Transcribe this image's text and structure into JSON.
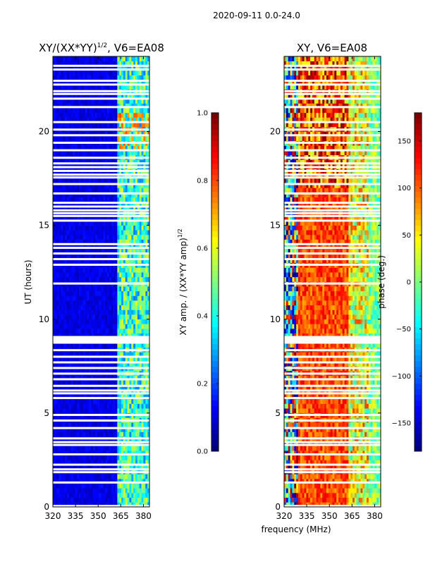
{
  "figure_title": "2020-09-11 0.0-24.0",
  "colors": {
    "jet_stops": [
      "#00007f",
      "#0000ff",
      "#007fff",
      "#00ffff",
      "#7fff7f",
      "#ffff00",
      "#ff7f00",
      "#ff0000",
      "#7f0000"
    ],
    "flagged_row": "#ffffff",
    "axis": "#000000"
  },
  "chart_data": [
    {
      "type": "heatmap",
      "title_main": "XY/(XX*YY)",
      "title_exp": "1/2",
      "title_suffix": ", V6=EA08",
      "xlabel": "",
      "ylabel": "UT (hours)",
      "xlim": [
        320,
        384
      ],
      "ylim": [
        0,
        24
      ],
      "xticks": [
        320,
        335,
        350,
        365,
        380
      ],
      "yticks": [
        0,
        5,
        10,
        15,
        20
      ],
      "colorbar": {
        "label_main": "XY amp. / (XX*YY amp)",
        "label_exp": "1/2",
        "range": [
          0.0,
          1.0
        ],
        "ticks": [
          "0.0",
          "0.2",
          "0.4",
          "0.6",
          "0.8",
          "1.0"
        ]
      },
      "flagged_times_hours": [
        0.05,
        1.3,
        1.85,
        2.0,
        2.25,
        2.8,
        3.3,
        3.45,
        3.65,
        4.2,
        4.6,
        4.9,
        5.8,
        6.05,
        6.2,
        6.45,
        6.8,
        7.1,
        7.4,
        7.7,
        8.0,
        8.35,
        8.75,
        8.85,
        8.95,
        9.05,
        11.9,
        12.9,
        13.2,
        13.5,
        13.8,
        14.0,
        15.25,
        15.5,
        15.65,
        15.8,
        16.0,
        16.2,
        16.7,
        17.2,
        17.55,
        17.7,
        17.9,
        18.1,
        18.3,
        18.6,
        19.0,
        19.4,
        19.8,
        20.1,
        20.5,
        21.3,
        21.75,
        22.0,
        22.15,
        22.5,
        22.7,
        23.3,
        23.5
      ],
      "bands": [
        {
          "x_range_mhz": [
            320,
            362.5
          ],
          "level": 0.1,
          "description": "low coherence"
        },
        {
          "x_range_mhz": [
            362.5,
            384
          ],
          "level": 0.42,
          "description": "elevated coherence"
        }
      ]
    },
    {
      "type": "heatmap",
      "title_main": "XY, V6=EA08",
      "xlabel": "frequency (MHz)",
      "ylabel": "",
      "xlim": [
        320,
        384
      ],
      "ylim": [
        0,
        24
      ],
      "xticks": [
        320,
        335,
        350,
        365,
        380
      ],
      "yticks": [
        0,
        5,
        10,
        15,
        20
      ],
      "colorbar": {
        "label": "phase (deg.)",
        "range": [
          -180,
          180
        ],
        "ticks": [
          "150",
          "100",
          "50",
          "0",
          "−50",
          "−100",
          "−150"
        ]
      },
      "flagged_times_hours": [
        0.05,
        1.3,
        1.85,
        2.0,
        2.25,
        2.8,
        3.3,
        3.45,
        3.65,
        4.2,
        4.6,
        4.9,
        5.8,
        6.05,
        6.2,
        6.45,
        6.8,
        7.1,
        7.4,
        7.7,
        8.0,
        8.35,
        8.75,
        8.85,
        8.95,
        9.05,
        11.9,
        12.9,
        13.2,
        13.5,
        13.8,
        14.0,
        15.25,
        15.5,
        15.65,
        15.8,
        16.0,
        16.2,
        16.7,
        17.2,
        17.55,
        17.7,
        17.9,
        18.1,
        18.3,
        18.6,
        19.0,
        19.4,
        19.8,
        20.1,
        20.5,
        21.3,
        21.75,
        22.0,
        22.15,
        22.5,
        22.7,
        23.3,
        23.5
      ],
      "bands": [
        {
          "x_range_mhz": [
            320,
            330
          ],
          "phase_deg": -60,
          "description": "noisy mixed phase"
        },
        {
          "x_range_mhz": [
            330,
            362.5
          ],
          "phase_deg": 110,
          "description": "orange/red phase"
        },
        {
          "x_range_mhz": [
            362.5,
            376
          ],
          "phase_deg": 40,
          "description": "yellow/green mixed"
        },
        {
          "x_range_mhz": [
            376,
            384
          ],
          "phase_deg": 0,
          "description": "green"
        }
      ]
    }
  ]
}
